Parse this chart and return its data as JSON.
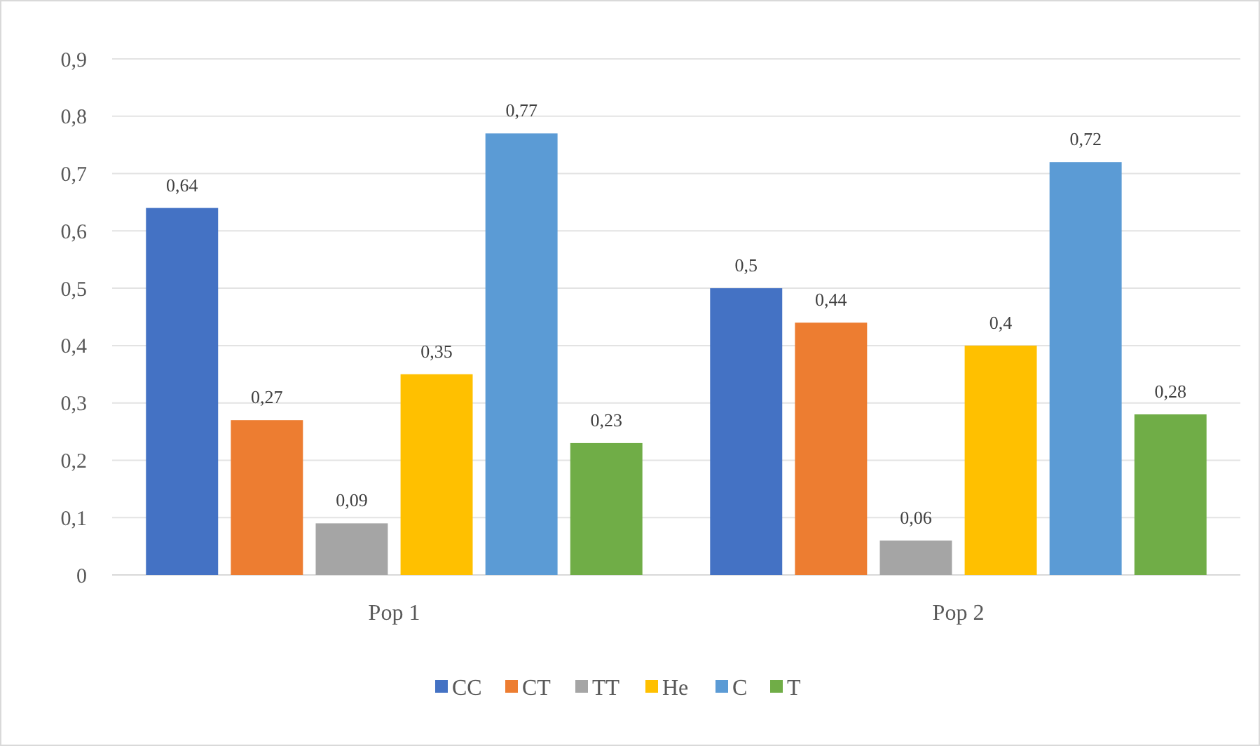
{
  "chart_data": {
    "type": "bar",
    "categories": [
      "Pop 1",
      "Pop 2"
    ],
    "series": [
      {
        "name": "CC",
        "color": "#4472c4",
        "values": [
          0.64,
          0.5
        ],
        "value_labels": [
          "0,64",
          "0,5"
        ]
      },
      {
        "name": "CT",
        "color": "#ed7d31",
        "values": [
          0.27,
          0.44
        ],
        "value_labels": [
          "0,27",
          "0,44"
        ]
      },
      {
        "name": "TT",
        "color": "#a5a5a5",
        "values": [
          0.09,
          0.06
        ],
        "value_labels": [
          "0,09",
          "0,06"
        ]
      },
      {
        "name": "He",
        "color": "#ffc000",
        "values": [
          0.35,
          0.4
        ],
        "value_labels": [
          "0,35",
          "0,4"
        ]
      },
      {
        "name": "C",
        "color": "#5b9bd5",
        "values": [
          0.77,
          0.72
        ],
        "value_labels": [
          "0,77",
          "0,72"
        ]
      },
      {
        "name": "T",
        "color": "#70ad47",
        "values": [
          0.23,
          0.28
        ],
        "value_labels": [
          "0,23",
          "0,28"
        ]
      }
    ],
    "ylim": [
      0,
      0.9
    ],
    "yticks": [
      0,
      {
        "value": 0.1,
        "label": "0,1"
      },
      {
        "value": 0.2,
        "label": "0,2"
      },
      {
        "value": 0.3,
        "label": "0,3"
      },
      {
        "value": 0.4,
        "label": "0,4"
      },
      {
        "value": 0.5,
        "label": "0,5"
      },
      {
        "value": 0.6,
        "label": "0,6"
      },
      {
        "value": 0.7,
        "label": "0,7"
      },
      {
        "value": 0.8,
        "label": "0,8"
      },
      {
        "value": 0.9,
        "label": "0,9"
      }
    ],
    "grid": "y",
    "legend": "bottom"
  }
}
